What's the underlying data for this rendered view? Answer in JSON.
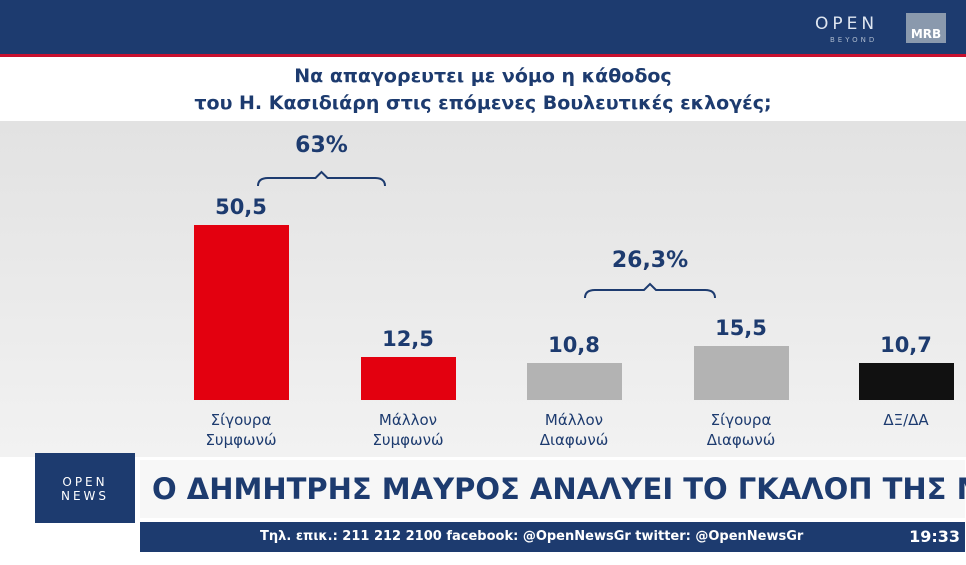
{
  "screen": {
    "brand": "OPEN",
    "brand_sub": "BEYOND",
    "partner": "MRB",
    "banner": "Ο ΔΗΜΗΤΡΗΣ ΜΑΥΡΟΣ ΑΝΑΛΥΕΙ ΤΟ ΓΚΑΛΟΠ ΤΗΣ MRB",
    "logo": [
      "OPEN",
      "NEWS"
    ],
    "ticker": "Τηλ. επικ.: 211 212 2100 facebook: @OpenNewsGr twitter: @OpenNewsGr",
    "time": "19:33"
  },
  "chart_data": {
    "type": "bar",
    "title": [
      "Να απαγορευτει με νόμο η κάθοδος",
      "του Η. Κασιδιάρη στις επόμενες Βουλευτικές εκλογές;"
    ],
    "categories": [
      "Σίγουρα Συμφωνώ",
      "Μάλλον Συμφωνώ",
      "Μάλλον Διαφωνώ",
      "Σίγουρα Διαφωνώ",
      "ΔΞ/ΔΑ"
    ],
    "values": [
      50.5,
      12.5,
      10.8,
      15.5,
      10.7
    ],
    "value_labels": [
      "50,5",
      "12,5",
      "10,8",
      "15,5",
      "10,7"
    ],
    "colors": [
      "#e3000f",
      "#e3000f",
      "#b3b3b3",
      "#b3b3b3",
      "#111111"
    ],
    "groups": [
      {
        "value": 63,
        "label": "63%"
      },
      {
        "value": 26.3,
        "label": "26,3%"
      }
    ]
  }
}
